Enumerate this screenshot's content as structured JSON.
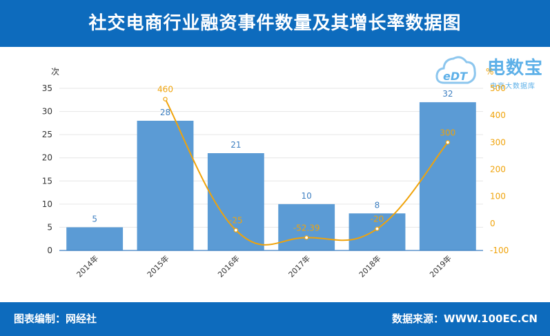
{
  "header": {
    "title": "社交电商行业融资事件数量及其增长率数据图"
  },
  "footer": {
    "left": "图表编制：网经社",
    "right": "数据来源：WWW.100EC.CN"
  },
  "watermark": {
    "cloud_text": "eDT",
    "name": "电数宝",
    "sub": "电商大数据库"
  },
  "colors": {
    "header": "#0d6bbd",
    "bar": "#5b9bd5",
    "line": "#f0a30a",
    "grid": "#e6e6e6"
  },
  "chart_data": {
    "type": "bar",
    "categories": [
      "2014年",
      "2015年",
      "2016年",
      "2017年",
      "2018年",
      "2019年"
    ],
    "series": [
      {
        "type": "bar",
        "axis": "left",
        "values": [
          5,
          28,
          21,
          10,
          8,
          32
        ]
      },
      {
        "type": "line",
        "axis": "right",
        "values": [
          null,
          460,
          -25,
          -52.39,
          -20,
          300
        ]
      }
    ],
    "ylabel_left": "次",
    "ylabel_right": "%",
    "ylim_left": [
      0,
      35
    ],
    "yticks_left": [
      0,
      5,
      10,
      15,
      20,
      25,
      30,
      35
    ],
    "ylim_right": [
      -100,
      500
    ],
    "yticks_right": [
      -100,
      0,
      100,
      200,
      300,
      400,
      500
    ],
    "grid": true,
    "legend": "none"
  }
}
